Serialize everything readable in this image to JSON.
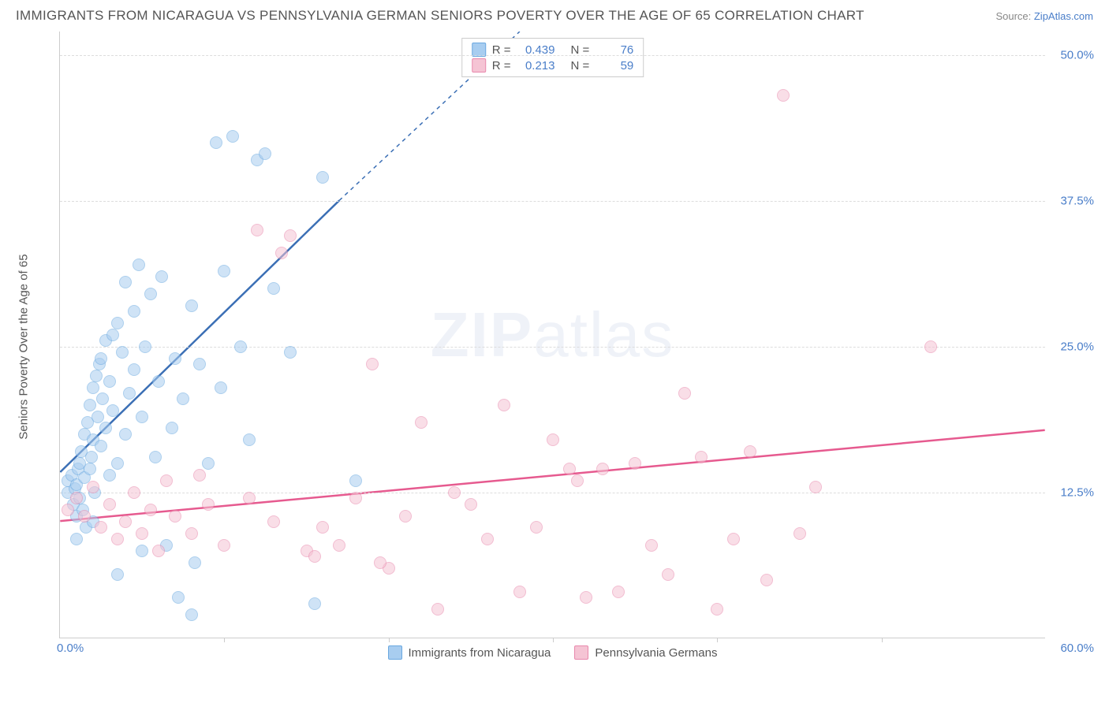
{
  "title": "IMMIGRANTS FROM NICARAGUA VS PENNSYLVANIA GERMAN SENIORS POVERTY OVER THE AGE OF 65 CORRELATION CHART",
  "source_label": "Source: ",
  "source_link": "ZipAtlas.com",
  "watermark_bold": "ZIP",
  "watermark_light": "atlas",
  "chart": {
    "type": "scatter",
    "xlim": [
      0,
      60
    ],
    "ylim": [
      0,
      52
    ],
    "x_tick_min_label": "0.0%",
    "x_tick_max_label": "60.0%",
    "x_minor_tick_step": 10,
    "y_ticks": [
      12.5,
      25.0,
      37.5,
      50.0
    ],
    "y_tick_labels": [
      "12.5%",
      "25.0%",
      "37.5%",
      "50.0%"
    ],
    "y_axis_label": "Seniors Poverty Over the Age of 65",
    "grid_color": "#dddddd",
    "background_color": "#ffffff",
    "axis_color": "#cccccc",
    "tick_label_color": "#4a7ec9",
    "point_radius": 8,
    "series": [
      {
        "name": "Immigrants from Nicaragua",
        "fill_color": "#a8cdf0",
        "stroke_color": "#6aa8e0",
        "line_color": "#3b6fb5",
        "r_value": "0.439",
        "n_value": "76",
        "trend_line": {
          "x1": 0,
          "y1": 14.2,
          "x2": 17,
          "y2": 37.5,
          "dash_extend_x2": 28,
          "dash_extend_y2": 52
        },
        "points": [
          [
            0.5,
            12.5
          ],
          [
            0.5,
            13.5
          ],
          [
            0.7,
            14.0
          ],
          [
            0.8,
            11.5
          ],
          [
            0.9,
            12.8
          ],
          [
            1.0,
            10.5
          ],
          [
            1.0,
            13.2
          ],
          [
            1.1,
            14.5
          ],
          [
            1.2,
            15.0
          ],
          [
            1.2,
            12.0
          ],
          [
            1.3,
            16.0
          ],
          [
            1.4,
            11.0
          ],
          [
            1.5,
            17.5
          ],
          [
            1.5,
            13.8
          ],
          [
            1.6,
            9.5
          ],
          [
            1.7,
            18.5
          ],
          [
            1.8,
            14.5
          ],
          [
            1.8,
            20.0
          ],
          [
            1.9,
            15.5
          ],
          [
            2.0,
            21.5
          ],
          [
            2.0,
            17.0
          ],
          [
            2.1,
            12.5
          ],
          [
            2.2,
            22.5
          ],
          [
            2.3,
            19.0
          ],
          [
            2.4,
            23.5
          ],
          [
            2.5,
            16.5
          ],
          [
            2.5,
            24.0
          ],
          [
            2.6,
            20.5
          ],
          [
            2.8,
            18.0
          ],
          [
            2.8,
            25.5
          ],
          [
            3.0,
            22.0
          ],
          [
            3.0,
            14.0
          ],
          [
            3.2,
            26.0
          ],
          [
            3.2,
            19.5
          ],
          [
            3.5,
            15.0
          ],
          [
            3.5,
            27.0
          ],
          [
            3.8,
            24.5
          ],
          [
            4.0,
            30.5
          ],
          [
            4.0,
            17.5
          ],
          [
            4.2,
            21.0
          ],
          [
            4.5,
            28.0
          ],
          [
            4.5,
            23.0
          ],
          [
            4.8,
            32.0
          ],
          [
            5.0,
            19.0
          ],
          [
            5.0,
            7.5
          ],
          [
            5.2,
            25.0
          ],
          [
            5.5,
            29.5
          ],
          [
            5.8,
            15.5
          ],
          [
            6.0,
            22.0
          ],
          [
            6.2,
            31.0
          ],
          [
            6.5,
            8.0
          ],
          [
            6.8,
            18.0
          ],
          [
            7.0,
            24.0
          ],
          [
            7.2,
            3.5
          ],
          [
            7.5,
            20.5
          ],
          [
            8.0,
            28.5
          ],
          [
            8.2,
            6.5
          ],
          [
            8.5,
            23.5
          ],
          [
            9.0,
            15.0
          ],
          [
            9.5,
            42.5
          ],
          [
            9.8,
            21.5
          ],
          [
            10.0,
            31.5
          ],
          [
            10.5,
            43.0
          ],
          [
            11.0,
            25.0
          ],
          [
            11.5,
            17.0
          ],
          [
            12.0,
            41.0
          ],
          [
            12.5,
            41.5
          ],
          [
            13.0,
            30.0
          ],
          [
            14.0,
            24.5
          ],
          [
            15.5,
            3.0
          ],
          [
            16.0,
            39.5
          ],
          [
            18.0,
            13.5
          ],
          [
            8.0,
            2.0
          ],
          [
            3.5,
            5.5
          ],
          [
            1.0,
            8.5
          ],
          [
            2.0,
            10.0
          ]
        ]
      },
      {
        "name": "Pennsylvania Germans",
        "fill_color": "#f5c4d4",
        "stroke_color": "#e888ac",
        "line_color": "#e65a8f",
        "r_value": "0.213",
        "n_value": "59",
        "trend_line": {
          "x1": 0,
          "y1": 10.0,
          "x2": 60,
          "y2": 17.8
        },
        "points": [
          [
            0.5,
            11.0
          ],
          [
            1.0,
            12.0
          ],
          [
            1.5,
            10.5
          ],
          [
            2.0,
            13.0
          ],
          [
            2.5,
            9.5
          ],
          [
            3.0,
            11.5
          ],
          [
            3.5,
            8.5
          ],
          [
            4.0,
            10.0
          ],
          [
            4.5,
            12.5
          ],
          [
            5.0,
            9.0
          ],
          [
            5.5,
            11.0
          ],
          [
            6.0,
            7.5
          ],
          [
            7.0,
            10.5
          ],
          [
            8.0,
            9.0
          ],
          [
            9.0,
            11.5
          ],
          [
            10.0,
            8.0
          ],
          [
            11.5,
            12.0
          ],
          [
            12.0,
            35.0
          ],
          [
            13.0,
            10.0
          ],
          [
            14.0,
            34.5
          ],
          [
            15.0,
            7.5
          ],
          [
            16.0,
            9.5
          ],
          [
            17.0,
            8.0
          ],
          [
            18.0,
            12.0
          ],
          [
            19.0,
            23.5
          ],
          [
            20.0,
            6.0
          ],
          [
            21.0,
            10.5
          ],
          [
            22.0,
            18.5
          ],
          [
            23.0,
            2.5
          ],
          [
            24.0,
            12.5
          ],
          [
            25.0,
            11.5
          ],
          [
            26.0,
            8.5
          ],
          [
            27.0,
            20.0
          ],
          [
            28.0,
            4.0
          ],
          [
            29.0,
            9.5
          ],
          [
            30.0,
            17.0
          ],
          [
            31.0,
            14.5
          ],
          [
            31.5,
            13.5
          ],
          [
            32.0,
            3.5
          ],
          [
            33.0,
            14.5
          ],
          [
            34.0,
            4.0
          ],
          [
            35.0,
            15.0
          ],
          [
            36.0,
            8.0
          ],
          [
            37.0,
            5.5
          ],
          [
            38.0,
            21.0
          ],
          [
            39.0,
            15.5
          ],
          [
            40.0,
            2.5
          ],
          [
            41.0,
            8.5
          ],
          [
            42.0,
            16.0
          ],
          [
            43.0,
            5.0
          ],
          [
            44.0,
            46.5
          ],
          [
            45.0,
            9.0
          ],
          [
            46.0,
            13.0
          ],
          [
            53.0,
            25.0
          ],
          [
            13.5,
            33.0
          ],
          [
            15.5,
            7.0
          ],
          [
            6.5,
            13.5
          ],
          [
            8.5,
            14.0
          ],
          [
            19.5,
            6.5
          ]
        ]
      }
    ]
  }
}
